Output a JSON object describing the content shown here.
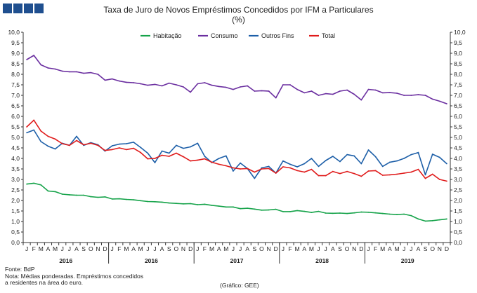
{
  "header": {
    "title_line1": "Taxa de Juro de Novos Empréstimos Concedidos por IFM a Particulares",
    "title_line2": "(%)"
  },
  "footer": {
    "source": "Fonte: BdP",
    "note_line1": "Nota: Médias ponderadas. Empréstimos concedidos",
    "note_line2": "a residentes na área do euro.",
    "credit": "(Gráfico: GEE)"
  },
  "chart_data": {
    "type": "line",
    "ylim": [
      0,
      10
    ],
    "yticks": [
      "0,0",
      "0,5",
      "1,0",
      "1,5",
      "2,0",
      "2,5",
      "3,0",
      "3,5",
      "4,0",
      "4,5",
      "5,0",
      "5,5",
      "6,0",
      "6,5",
      "7,0",
      "7,5",
      "8,0",
      "8,5",
      "9,0",
      "9,5",
      "10,0"
    ],
    "grid": false,
    "legend_position": "top",
    "month_labels": [
      "J",
      "F",
      "M",
      "A",
      "M",
      "J",
      "J",
      "A",
      "S",
      "O",
      "N",
      "D"
    ],
    "year_labels": [
      "2016",
      "2016",
      "2017",
      "2018",
      "2019"
    ],
    "colors": {
      "axis": "#333333"
    },
    "series": [
      {
        "name": "Habitação",
        "color": "#16a34a",
        "values": [
          2.78,
          2.82,
          2.74,
          2.45,
          2.42,
          2.3,
          2.27,
          2.25,
          2.25,
          2.18,
          2.15,
          2.17,
          2.07,
          2.08,
          2.05,
          2.03,
          1.99,
          1.95,
          1.94,
          1.92,
          1.88,
          1.86,
          1.84,
          1.85,
          1.8,
          1.82,
          1.77,
          1.73,
          1.69,
          1.69,
          1.61,
          1.63,
          1.59,
          1.54,
          1.55,
          1.58,
          1.47,
          1.47,
          1.52,
          1.48,
          1.43,
          1.48,
          1.4,
          1.39,
          1.4,
          1.38,
          1.41,
          1.45,
          1.44,
          1.41,
          1.38,
          1.35,
          1.33,
          1.35,
          1.28,
          1.12,
          1.02,
          1.04,
          1.08,
          1.12
        ]
      },
      {
        "name": "Consumo",
        "color": "#6b2fa0",
        "values": [
          8.7,
          8.9,
          8.45,
          8.3,
          8.25,
          8.15,
          8.12,
          8.12,
          8.05,
          8.08,
          8.0,
          7.72,
          7.78,
          7.68,
          7.62,
          7.6,
          7.55,
          7.48,
          7.52,
          7.45,
          7.58,
          7.5,
          7.4,
          7.15,
          7.55,
          7.6,
          7.48,
          7.42,
          7.38,
          7.28,
          7.4,
          7.45,
          7.2,
          7.22,
          7.2,
          6.88,
          7.5,
          7.5,
          7.28,
          7.12,
          7.2,
          7.0,
          7.08,
          7.05,
          7.2,
          7.25,
          7.05,
          6.78,
          7.28,
          7.25,
          7.12,
          7.13,
          7.1,
          7.0,
          7.0,
          7.03,
          7.0,
          6.82,
          6.72,
          6.6
        ]
      },
      {
        "name": "Outros Fins",
        "color": "#1d5fa8",
        "values": [
          5.22,
          5.35,
          4.8,
          4.58,
          4.45,
          4.72,
          4.62,
          5.05,
          4.62,
          4.75,
          4.65,
          4.35,
          4.6,
          4.68,
          4.7,
          4.77,
          4.52,
          4.25,
          3.8,
          4.35,
          4.25,
          4.62,
          4.48,
          4.55,
          4.72,
          4.1,
          3.8,
          4.0,
          4.12,
          3.4,
          3.78,
          3.52,
          3.05,
          3.55,
          3.62,
          3.3,
          3.88,
          3.72,
          3.6,
          3.75,
          4.0,
          3.62,
          3.9,
          4.1,
          3.85,
          4.18,
          4.12,
          3.75,
          4.4,
          4.08,
          3.62,
          3.82,
          3.88,
          4.0,
          4.18,
          4.28,
          3.22,
          4.2,
          4.05,
          3.75
        ]
      },
      {
        "name": "Total",
        "color": "#e01b1b",
        "values": [
          5.5,
          5.82,
          5.3,
          5.05,
          4.92,
          4.7,
          4.62,
          4.85,
          4.65,
          4.72,
          4.62,
          4.38,
          4.42,
          4.5,
          4.42,
          4.48,
          4.28,
          3.98,
          4.0,
          4.15,
          4.1,
          4.25,
          4.08,
          3.88,
          3.92,
          3.98,
          3.82,
          3.72,
          3.65,
          3.55,
          3.5,
          3.52,
          3.35,
          3.5,
          3.52,
          3.3,
          3.6,
          3.55,
          3.42,
          3.35,
          3.48,
          3.18,
          3.18,
          3.38,
          3.28,
          3.38,
          3.28,
          3.15,
          3.4,
          3.42,
          3.2,
          3.22,
          3.25,
          3.3,
          3.35,
          3.48,
          3.05,
          3.25,
          3.0,
          2.92
        ]
      }
    ]
  }
}
